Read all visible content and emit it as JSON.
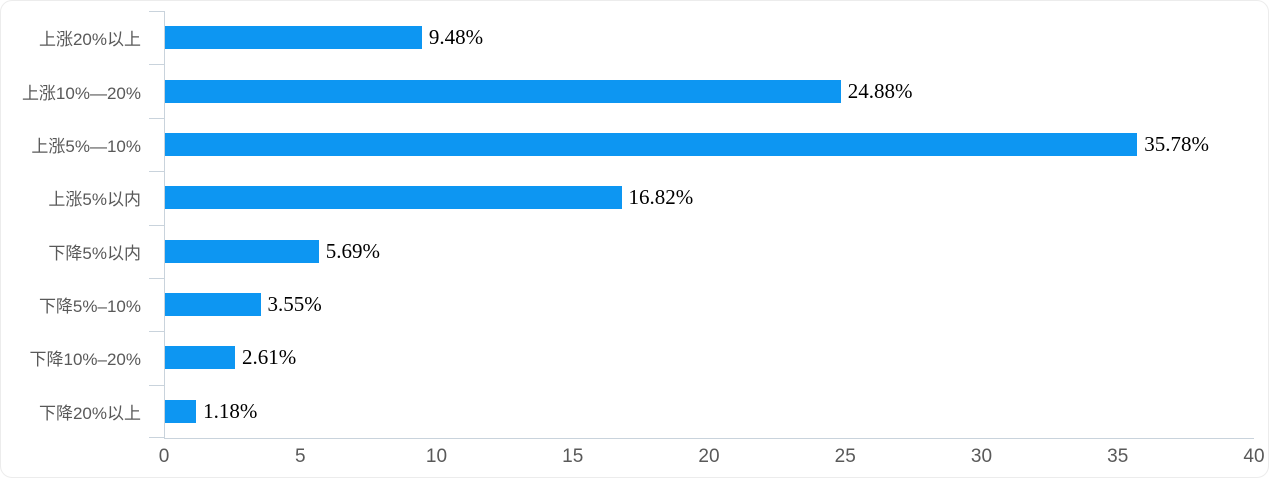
{
  "chart_data": {
    "type": "bar",
    "orientation": "horizontal",
    "title": "",
    "xlabel": "",
    "ylabel": "",
    "categories": [
      "上涨20%以上",
      "上涨10%—20%",
      "上涨5%—10%",
      "上涨5%以内",
      "下降5%以内",
      "下降5%–10%",
      "下降10%–20%",
      "下降20%以上"
    ],
    "values": [
      9.48,
      24.88,
      35.78,
      16.82,
      5.69,
      3.55,
      2.61,
      1.18
    ],
    "value_labels": [
      "9.48%",
      "24.88%",
      "35.78%",
      "16.82%",
      "5.69%",
      "3.55%",
      "2.61%",
      "1.18%"
    ],
    "x_ticks": [
      "0",
      "5",
      "10",
      "15",
      "20",
      "25",
      "30",
      "35",
      "40"
    ],
    "xlim": [
      0,
      40
    ],
    "grid": false,
    "legend": false,
    "bar_color": "#0d96f2",
    "axis_color": "#c9d3dc",
    "category_label_color": "#595959",
    "value_label_color": "#000000"
  }
}
